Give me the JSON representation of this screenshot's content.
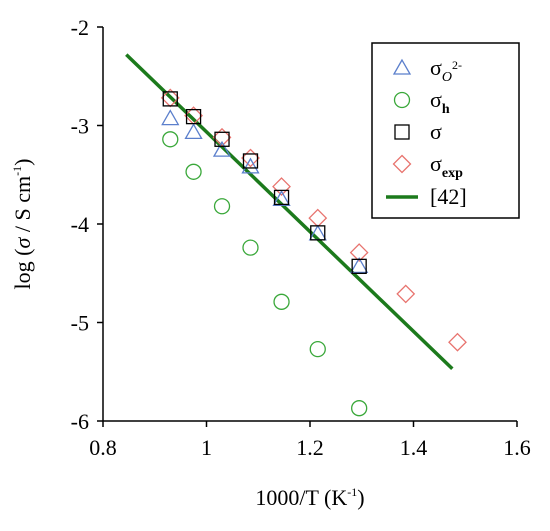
{
  "chart_data": {
    "type": "scatter",
    "xlabel_main": "1000/T (K",
    "xlabel_sup": "-1",
    "xlabel_close": ")",
    "ylabel_prefix": "log (",
    "ylabel_sigma": "σ",
    "ylabel_unit": " / S cm",
    "ylabel_sup": "-1",
    "ylabel_close": ")",
    "xlim": [
      0.8,
      1.6
    ],
    "ylim": [
      -6,
      -2
    ],
    "xticks": [
      0.8,
      1.0,
      1.2,
      1.4,
      1.6
    ],
    "xtick_labels": [
      "0.8",
      "1",
      "1.2",
      "1.4",
      "1.6"
    ],
    "yticks": [
      -2,
      -3,
      -4,
      -5,
      -6
    ],
    "ytick_labels": [
      "-2",
      "-3",
      "-4",
      "-5",
      "-6"
    ],
    "grid": false,
    "legend_position": "top-right",
    "series": [
      {
        "legend_main": "σ",
        "legend_sub": "O",
        "legend_sup": "2-",
        "marker": "triangle",
        "color": "#5B7FCC",
        "x": [
          0.93,
          0.975,
          1.03,
          1.085,
          1.145,
          1.215,
          1.295
        ],
        "y": [
          -2.93,
          -3.07,
          -3.25,
          -3.42,
          -3.75,
          -4.1,
          -4.43
        ]
      },
      {
        "legend_main": "σ",
        "legend_sub": "h",
        "marker": "circle",
        "color": "#3AA83A",
        "x": [
          0.93,
          0.975,
          1.03,
          1.085,
          1.145,
          1.215,
          1.295
        ],
        "y": [
          -3.14,
          -3.47,
          -3.82,
          -4.24,
          -4.79,
          -5.27,
          -5.87
        ]
      },
      {
        "legend_main": "σ",
        "marker": "square",
        "color": "#000000",
        "x": [
          0.93,
          0.975,
          1.03,
          1.085,
          1.145,
          1.215,
          1.295
        ],
        "y": [
          -2.73,
          -2.91,
          -3.14,
          -3.36,
          -3.73,
          -4.09,
          -4.43
        ]
      },
      {
        "legend_main": "σ",
        "legend_sub": "exp",
        "marker": "diamond",
        "color": "#E8736E",
        "x": [
          0.93,
          0.975,
          1.03,
          1.085,
          1.145,
          1.215,
          1.295,
          1.385,
          1.485
        ],
        "y": [
          -2.72,
          -2.9,
          -3.12,
          -3.33,
          -3.62,
          -3.94,
          -4.29,
          -4.71,
          -5.2
        ]
      },
      {
        "legend_main": "[42]",
        "marker": "line",
        "color": "#1C7A1C",
        "x": [
          0.845,
          1.475
        ],
        "y": [
          -2.28,
          -5.47
        ]
      }
    ]
  }
}
